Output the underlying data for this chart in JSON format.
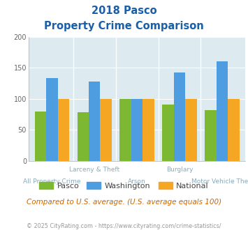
{
  "title_line1": "2018 Pasco",
  "title_line2": "Property Crime Comparison",
  "categories": [
    "All Property Crime",
    "Larceny & Theft",
    "Arson",
    "Burglary",
    "Motor Vehicle Theft"
  ],
  "pasco": [
    80,
    79,
    100,
    91,
    82
  ],
  "washington": [
    134,
    128,
    100,
    143,
    161
  ],
  "national": [
    100,
    100,
    100,
    100,
    100
  ],
  "pasco_color": "#7db832",
  "washington_color": "#4d9de0",
  "national_color": "#f5a623",
  "bg_color": "#ddeaf0",
  "title_color": "#1a5fa8",
  "axis_label_color": "#8aaabb",
  "note_color": "#cc6600",
  "footer_color": "#999999",
  "ylim": [
    0,
    200
  ],
  "yticks": [
    0,
    50,
    100,
    150,
    200
  ],
  "note_text": "Compared to U.S. average. (U.S. average equals 100)",
  "footer_text": "© 2025 CityRating.com - https://www.cityrating.com/crime-statistics/",
  "label_top": {
    "1": "Larceny & Theft",
    "3": "Burglary"
  },
  "label_bottom": {
    "0": "All Property Crime",
    "2": "Arson",
    "4": "Motor Vehicle Theft"
  }
}
